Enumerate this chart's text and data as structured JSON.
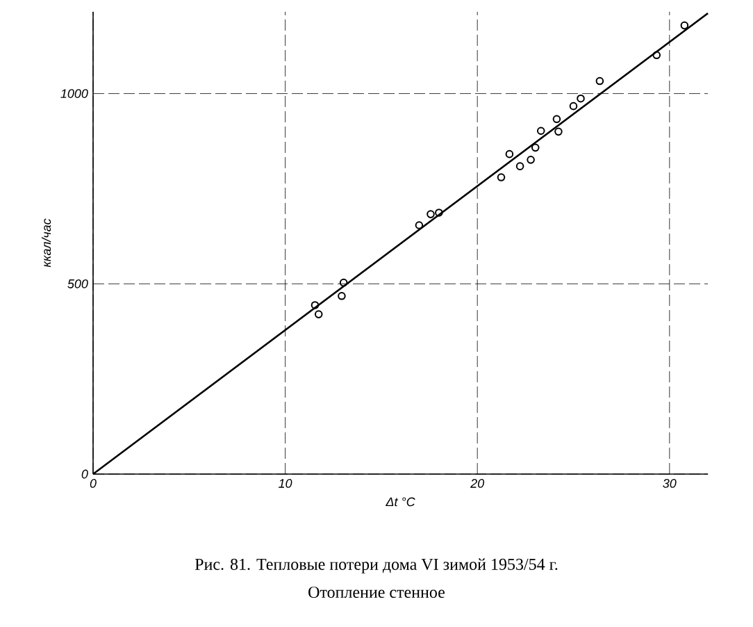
{
  "chart_data": {
    "type": "scatter",
    "title": "Рис. 81. Тепловые потери дома VI зимой 1953/54 г.",
    "subtitle": "Отопление стенное",
    "xlabel": "Δt °C",
    "ylabel": "ккал/час",
    "xlim": [
      0,
      32
    ],
    "ylim": [
      0,
      1215
    ],
    "xticks": [
      0,
      10,
      20,
      30
    ],
    "yticks": [
      0,
      500,
      1000
    ],
    "grid": true,
    "marker": "circle",
    "series": [
      {
        "color": "#000000",
        "x": [
          11.55,
          11.74,
          12.94,
          13.04,
          16.97,
          17.57,
          18.0,
          21.24,
          21.67,
          22.22,
          22.78,
          23.02,
          23.31,
          24.13,
          24.22,
          25.0,
          25.38,
          26.37,
          29.33,
          30.78
        ],
        "values": [
          444,
          420,
          468,
          503,
          654,
          683,
          687,
          780,
          841,
          809,
          826,
          858,
          902,
          933,
          900,
          967,
          987,
          1033,
          1101,
          1179
        ]
      },
      {
        "type": "line",
        "color": "#000000",
        "marker": "none",
        "line_style": "solid",
        "x": [
          0,
          32
        ],
        "values": [
          0,
          1211
        ]
      }
    ]
  }
}
